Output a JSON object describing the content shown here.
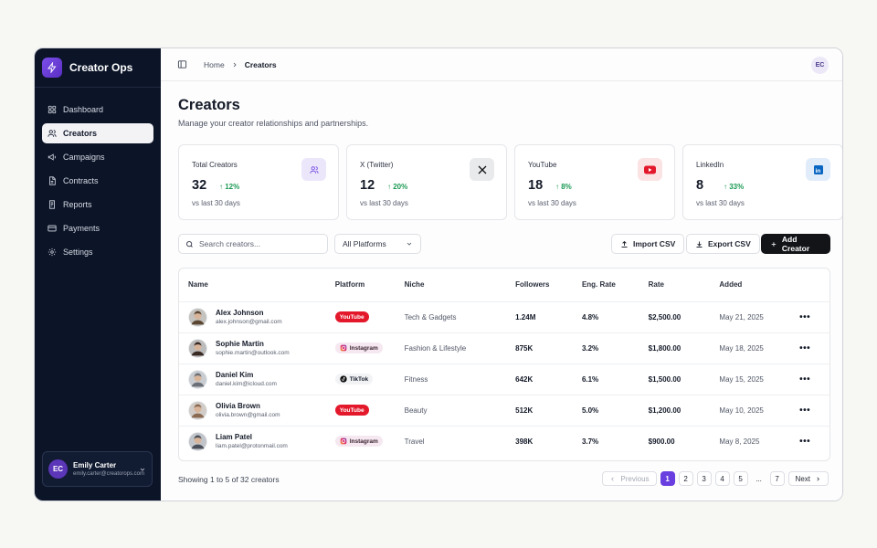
{
  "app": {
    "name": "Creator Ops"
  },
  "sidebar": {
    "items": [
      {
        "label": "Dashboard",
        "icon": "grid-icon"
      },
      {
        "label": "Creators",
        "icon": "users-icon",
        "active": true
      },
      {
        "label": "Campaigns",
        "icon": "megaphone-icon"
      },
      {
        "label": "Contracts",
        "icon": "document-icon"
      },
      {
        "label": "Reports",
        "icon": "report-icon"
      },
      {
        "label": "Payments",
        "icon": "card-icon"
      },
      {
        "label": "Settings",
        "icon": "gear-icon"
      }
    ],
    "user": {
      "initials": "EC",
      "name": "Emily Carter",
      "email": "emily.carter@creatorops.com"
    }
  },
  "topbar": {
    "crumb_home": "Home",
    "crumb_current": "Creators",
    "avatar_initials": "EC"
  },
  "page": {
    "title": "Creators",
    "subtitle": "Manage your creator relationships and partnerships."
  },
  "stats": [
    {
      "label": "Total Creators",
      "value": "32",
      "change": "12%",
      "foot": "vs last 30 days",
      "icon": "users-icon",
      "icon_bg": "#ece6fb",
      "icon_color": "#6a3fe0"
    },
    {
      "label": "X (Twitter)",
      "value": "12",
      "change": "20%",
      "foot": "vs last 30 days",
      "icon": "x-icon",
      "icon_bg": "#e9eaec",
      "icon_color": "#141414"
    },
    {
      "label": "YouTube",
      "value": "18",
      "change": "8%",
      "foot": "vs last 30 days",
      "icon": "youtube-icon",
      "icon_bg": "#fbe3e4",
      "icon_color": "#e3192b"
    },
    {
      "label": "LinkedIn",
      "value": "8",
      "change": "33%",
      "foot": "vs last 30 days",
      "icon": "linkedin-icon",
      "icon_bg": "#e1ecfb",
      "icon_color": "#0a66c2"
    }
  ],
  "toolbar": {
    "search_placeholder": "Search creators...",
    "platform_filter": "All Platforms",
    "import_label": "Import CSV",
    "export_label": "Export CSV",
    "add_label": "Add Creator"
  },
  "table": {
    "headers": [
      "Name",
      "Platform",
      "Niche",
      "Followers",
      "Eng. Rate",
      "Rate",
      "Added"
    ],
    "rows": [
      {
        "name": "Alex Johnson",
        "email": "alex.johnson@gmail.com",
        "platform": "YouTube",
        "platform_type": "yt",
        "niche": "Tech & Gadgets",
        "followers": "1.24M",
        "eng": "4.8%",
        "rate": "$2,500.00",
        "added": "May 21, 2025",
        "avatar_color": "#5a4632"
      },
      {
        "name": "Sophie Martin",
        "email": "sophie.martin@outlook.com",
        "platform": "Instagram",
        "platform_type": "ig",
        "niche": "Fashion & Lifestyle",
        "followers": "875K",
        "eng": "3.2%",
        "rate": "$1,800.00",
        "added": "May 18, 2025",
        "avatar_color": "#3a2a24"
      },
      {
        "name": "Daniel Kim",
        "email": "daniel.kim@icloud.com",
        "platform": "TikTok",
        "platform_type": "tt",
        "niche": "Fitness",
        "followers": "642K",
        "eng": "6.1%",
        "rate": "$1,500.00",
        "added": "May 15, 2025",
        "avatar_color": "#6b6f78"
      },
      {
        "name": "Olivia Brown",
        "email": "olivia.brown@gmail.com",
        "platform": "YouTube",
        "platform_type": "yt",
        "niche": "Beauty",
        "followers": "512K",
        "eng": "5.0%",
        "rate": "$1,200.00",
        "added": "May 10, 2025",
        "avatar_color": "#8a6a52"
      },
      {
        "name": "Liam Patel",
        "email": "liam.patel@protonmail.com",
        "platform": "Instagram",
        "platform_type": "ig",
        "niche": "Travel",
        "followers": "398K",
        "eng": "3.7%",
        "rate": "$900.00",
        "added": "May 8, 2025",
        "avatar_color": "#4a4f59"
      }
    ]
  },
  "footer": {
    "showing": "Showing 1 to 5 of 32 creators",
    "prev": "Previous",
    "next": "Next",
    "pages": [
      "1",
      "2",
      "3",
      "4",
      "5",
      "...",
      "7"
    ],
    "current": "1"
  },
  "colors": {
    "accent": "#6a3fe0",
    "sidebar_bg": "#0c1528",
    "positive": "#1b9a54"
  }
}
